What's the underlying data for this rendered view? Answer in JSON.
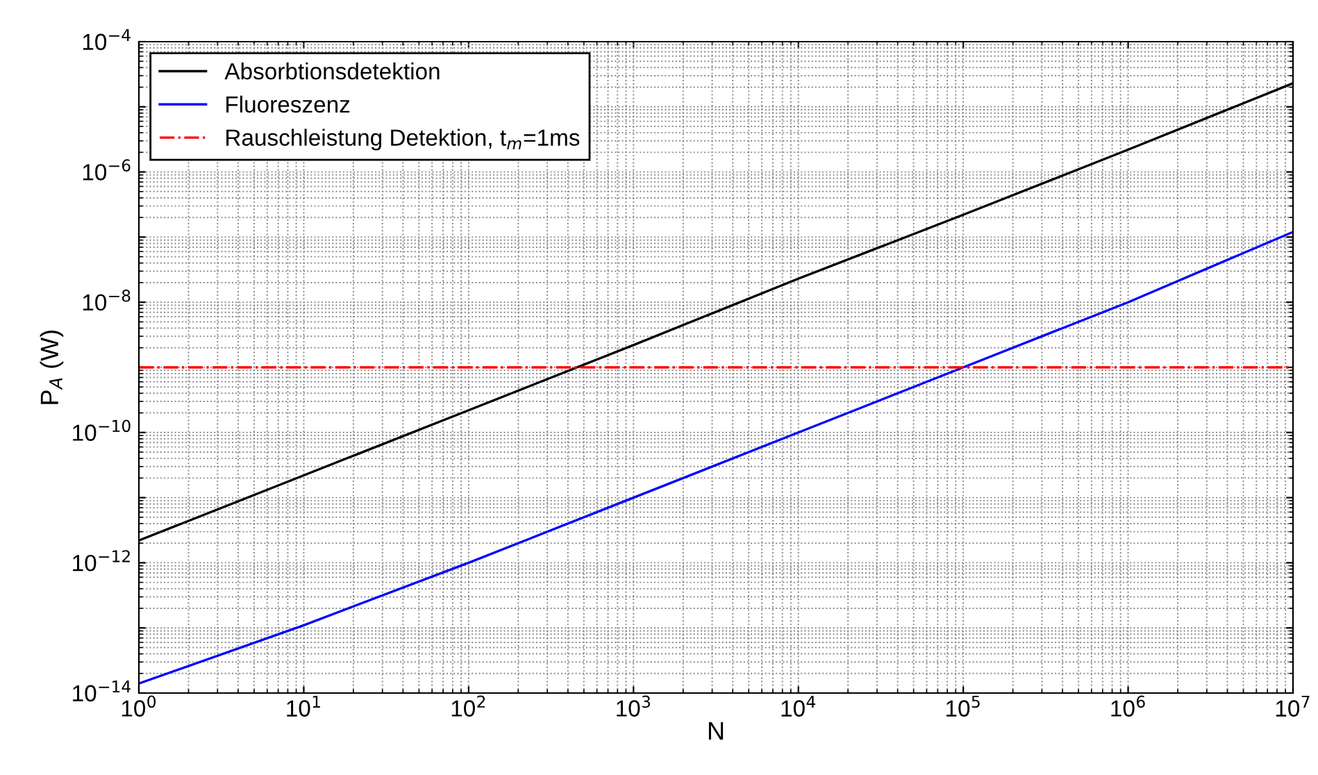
{
  "chart_data": {
    "type": "line",
    "xlabel": "N",
    "ylabel": "P$_{A}$ (W)",
    "x": [
      1,
      10,
      100,
      1000,
      10000,
      100000,
      1000000,
      10000000
    ],
    "series": [
      {
        "name": "Absorbtionsdetektion",
        "color": "#000000",
        "values": [
          2.2e-12,
          2.2e-11,
          2.2e-10,
          2.2e-09,
          2.3e-08,
          2.2e-07,
          2.2e-06,
          2.3e-05
        ]
      },
      {
        "name": "Fluoreszenz",
        "color": "#0000ff",
        "values": [
          1.4e-14,
          1.1e-13,
          1e-12,
          1e-11,
          1e-10,
          1e-09,
          1e-08,
          1.2e-07
        ]
      }
    ],
    "ref_lines": [
      {
        "axis": "y",
        "value": 1e-09,
        "label": "Rauschleistung Detektion, t$_{m}$=1ms",
        "color": "#ff0000",
        "line_style": "dashdot"
      }
    ],
    "log": "xy",
    "xlim": [
      1,
      10000000
    ],
    "ylim": [
      1e-14,
      0.0001
    ],
    "xticks": [
      {
        "value": 1,
        "label": "10$^{0}$"
      },
      {
        "value": 10,
        "label": "10$^{1}$"
      },
      {
        "value": 100,
        "label": "10$^{2}$"
      },
      {
        "value": 1000,
        "label": "10$^{3}$"
      },
      {
        "value": 10000,
        "label": "10$^{4}$"
      },
      {
        "value": 100000,
        "label": "10$^{5}$"
      },
      {
        "value": 1000000,
        "label": "10$^{6}$"
      },
      {
        "value": 10000000,
        "label": "10$^{7}$"
      }
    ],
    "yticks": [
      {
        "value": 1e-14,
        "label": "10$^{−14}$"
      },
      {
        "value": 1e-13,
        "label": null
      },
      {
        "value": 1e-12,
        "label": "10$^{−12}$"
      },
      {
        "value": 1e-11,
        "label": null
      },
      {
        "value": 1e-10,
        "label": "10$^{−10}$"
      },
      {
        "value": 1e-09,
        "label": null
      },
      {
        "value": 1e-08,
        "label": "10$^{−8}$"
      },
      {
        "value": 1e-07,
        "label": null
      },
      {
        "value": 1e-06,
        "label": "10$^{−6}$"
      },
      {
        "value": 1e-05,
        "label": null
      },
      {
        "value": 0.0001,
        "label": "10$^{−4}$"
      }
    ],
    "grid": true,
    "legend": "top left",
    "line_style": "solid",
    "marker": "none"
  }
}
